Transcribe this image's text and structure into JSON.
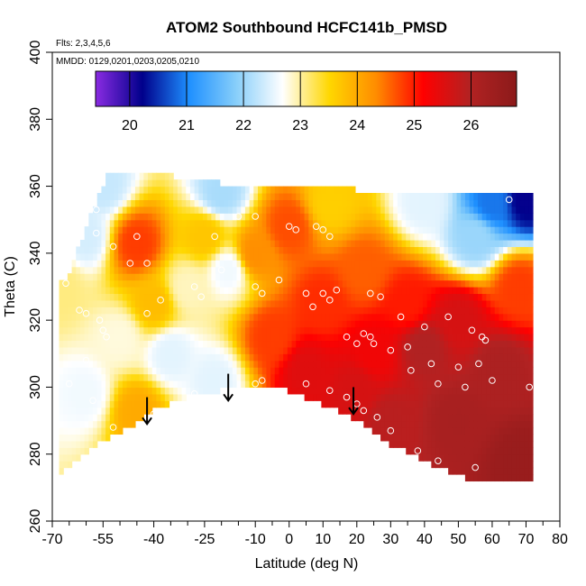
{
  "chart_data": {
    "type": "heatmap",
    "title": "ATOM2 Southbound HCFC141b_PMSD",
    "flights_note": "Flts: 2,3,4,5,6",
    "dates_note": "MMDD: 0129,0201,0203,0205,0210",
    "xlabel": "Latitude (deg N)",
    "ylabel": "Theta (C)",
    "xlim": [
      -70,
      80
    ],
    "ylim": [
      260,
      400
    ],
    "x_ticks": [
      -70,
      -55,
      -40,
      -25,
      -10,
      0,
      10,
      20,
      30,
      40,
      50,
      60,
      70,
      80
    ],
    "x_tick_labels": [
      "-70",
      "-55",
      "-40",
      "-25",
      "-10",
      "0",
      "10",
      "20",
      "30",
      "40",
      "50",
      "60",
      "70",
      "80"
    ],
    "x_minor_ticks": [
      -65,
      -60,
      -50,
      -45,
      -35,
      -30,
      -20,
      -15,
      -5,
      5,
      15,
      25,
      35,
      45,
      55,
      65,
      75
    ],
    "y_ticks": [
      260,
      280,
      300,
      320,
      340,
      360,
      380,
      400
    ],
    "y_tick_labels": [
      "260",
      "280",
      "300",
      "320",
      "340",
      "360",
      "380",
      "400"
    ],
    "colorbar": {
      "range": [
        19.4,
        26.8
      ],
      "ticks": [
        20,
        21,
        22,
        23,
        24,
        25,
        26
      ],
      "tick_labels": [
        "20",
        "21",
        "22",
        "23",
        "24",
        "25",
        "26"
      ],
      "colors": [
        "#8a2be2",
        "#00008b",
        "#1e90ff",
        "#87cefa",
        "#ffffff",
        "#ffd700",
        "#ff8c00",
        "#ff0000",
        "#b22222",
        "#8b1a1a"
      ]
    },
    "field_anchors": [
      {
        "lat": -68,
        "theta": 330,
        "value": 23.1
      },
      {
        "lat": -60,
        "theta": 345,
        "value": 22.4
      },
      {
        "lat": -55,
        "theta": 360,
        "value": 22.3
      },
      {
        "lat": -45,
        "theta": 343,
        "value": 24.8
      },
      {
        "lat": -40,
        "theta": 325,
        "value": 23.8
      },
      {
        "lat": -50,
        "theta": 315,
        "value": 22.8
      },
      {
        "lat": -60,
        "theta": 298,
        "value": 22.6
      },
      {
        "lat": -45,
        "theta": 293,
        "value": 24.0
      },
      {
        "lat": -35,
        "theta": 310,
        "value": 22.5
      },
      {
        "lat": -30,
        "theta": 330,
        "value": 22.9
      },
      {
        "lat": -25,
        "theta": 345,
        "value": 23.7
      },
      {
        "lat": -20,
        "theta": 358,
        "value": 22.1
      },
      {
        "lat": -18,
        "theta": 335,
        "value": 22.6
      },
      {
        "lat": -22,
        "theta": 302,
        "value": 22.5
      },
      {
        "lat": -10,
        "theta": 340,
        "value": 24.3
      },
      {
        "lat": -5,
        "theta": 315,
        "value": 24.8
      },
      {
        "lat": 0,
        "theta": 348,
        "value": 24.7
      },
      {
        "lat": 5,
        "theta": 305,
        "value": 25.5
      },
      {
        "lat": 10,
        "theta": 325,
        "value": 24.9
      },
      {
        "lat": 12,
        "theta": 355,
        "value": 23.6
      },
      {
        "lat": 20,
        "theta": 300,
        "value": 25.6
      },
      {
        "lat": 22,
        "theta": 335,
        "value": 24.6
      },
      {
        "lat": 25,
        "theta": 310,
        "value": 25.3
      },
      {
        "lat": 30,
        "theta": 290,
        "value": 25.9
      },
      {
        "lat": 35,
        "theta": 325,
        "value": 25.0
      },
      {
        "lat": 40,
        "theta": 312,
        "value": 26.0
      },
      {
        "lat": 40,
        "theta": 355,
        "value": 22.5
      },
      {
        "lat": 50,
        "theta": 290,
        "value": 26.2
      },
      {
        "lat": 50,
        "theta": 320,
        "value": 25.6
      },
      {
        "lat": 55,
        "theta": 345,
        "value": 22.0
      },
      {
        "lat": 60,
        "theta": 355,
        "value": 20.9
      },
      {
        "lat": 62,
        "theta": 305,
        "value": 26.1
      },
      {
        "lat": 68,
        "theta": 278,
        "value": 26.5
      },
      {
        "lat": 68,
        "theta": 330,
        "value": 24.8
      },
      {
        "lat": 70,
        "theta": 356,
        "value": 20.2
      }
    ],
    "observation_points": [
      {
        "lat": -66,
        "theta": 336
      },
      {
        "lat": -66,
        "theta": 331
      },
      {
        "lat": -62,
        "theta": 323
      },
      {
        "lat": -60,
        "theta": 322
      },
      {
        "lat": -56,
        "theta": 320
      },
      {
        "lat": -55,
        "theta": 317
      },
      {
        "lat": -54,
        "theta": 315
      },
      {
        "lat": -57,
        "theta": 346
      },
      {
        "lat": -57,
        "theta": 353
      },
      {
        "lat": -52,
        "theta": 342
      },
      {
        "lat": -47,
        "theta": 337
      },
      {
        "lat": -42,
        "theta": 322
      },
      {
        "lat": -38,
        "theta": 326
      },
      {
        "lat": -45,
        "theta": 345
      },
      {
        "lat": -42,
        "theta": 337
      },
      {
        "lat": -28,
        "theta": 330
      },
      {
        "lat": -26,
        "theta": 327
      },
      {
        "lat": -22,
        "theta": 345
      },
      {
        "lat": -20,
        "theta": 335
      },
      {
        "lat": -15,
        "theta": 351
      },
      {
        "lat": -10,
        "theta": 351
      },
      {
        "lat": -10,
        "theta": 330
      },
      {
        "lat": -8,
        "theta": 328
      },
      {
        "lat": -3,
        "theta": 332
      },
      {
        "lat": 0,
        "theta": 348
      },
      {
        "lat": 2,
        "theta": 347
      },
      {
        "lat": 5,
        "theta": 328
      },
      {
        "lat": 7,
        "theta": 324
      },
      {
        "lat": 8,
        "theta": 348
      },
      {
        "lat": 10,
        "theta": 347
      },
      {
        "lat": 12,
        "theta": 345
      },
      {
        "lat": 10,
        "theta": 328
      },
      {
        "lat": 14,
        "theta": 329
      },
      {
        "lat": 12,
        "theta": 326
      },
      {
        "lat": 17,
        "theta": 315
      },
      {
        "lat": 20,
        "theta": 313
      },
      {
        "lat": 22,
        "theta": 316
      },
      {
        "lat": 24,
        "theta": 315
      },
      {
        "lat": 25,
        "theta": 313
      },
      {
        "lat": 27,
        "theta": 327
      },
      {
        "lat": 24,
        "theta": 328
      },
      {
        "lat": 33,
        "theta": 321
      },
      {
        "lat": 30,
        "theta": 311
      },
      {
        "lat": 35,
        "theta": 312
      },
      {
        "lat": 36,
        "theta": 305
      },
      {
        "lat": 40,
        "theta": 318
      },
      {
        "lat": 42,
        "theta": 307
      },
      {
        "lat": 47,
        "theta": 321
      },
      {
        "lat": 44,
        "theta": 301
      },
      {
        "lat": 50,
        "theta": 306
      },
      {
        "lat": 52,
        "theta": 300
      },
      {
        "lat": 54,
        "theta": 317
      },
      {
        "lat": 56,
        "theta": 307
      },
      {
        "lat": 57,
        "theta": 315
      },
      {
        "lat": 58,
        "theta": 314
      },
      {
        "lat": 60,
        "theta": 302
      },
      {
        "lat": 65,
        "theta": 356
      },
      {
        "lat": 71,
        "theta": 300
      },
      {
        "lat": -40,
        "theta": 292
      },
      {
        "lat": -28,
        "theta": 298
      },
      {
        "lat": -35,
        "theta": 292
      },
      {
        "lat": -10,
        "theta": 301
      },
      {
        "lat": -8,
        "theta": 302
      },
      {
        "lat": 5,
        "theta": 301
      },
      {
        "lat": 12,
        "theta": 299
      },
      {
        "lat": 17,
        "theta": 297
      },
      {
        "lat": 20,
        "theta": 295
      },
      {
        "lat": 22,
        "theta": 293
      },
      {
        "lat": 26,
        "theta": 291
      },
      {
        "lat": 30,
        "theta": 287
      },
      {
        "lat": 38,
        "theta": 281
      },
      {
        "lat": 44,
        "theta": 278
      },
      {
        "lat": 55,
        "theta": 276
      },
      {
        "lat": -52,
        "theta": 288
      },
      {
        "lat": -58,
        "theta": 296
      },
      {
        "lat": -65,
        "theta": 301
      },
      {
        "lat": -60,
        "theta": 308
      }
    ],
    "arrows": [
      {
        "lat": -42,
        "theta_tail": 297,
        "theta_head": 289
      },
      {
        "lat": -18,
        "theta_tail": 304,
        "theta_head": 296
      },
      {
        "lat": 19,
        "theta_tail": 300,
        "theta_head": 292
      }
    ]
  }
}
